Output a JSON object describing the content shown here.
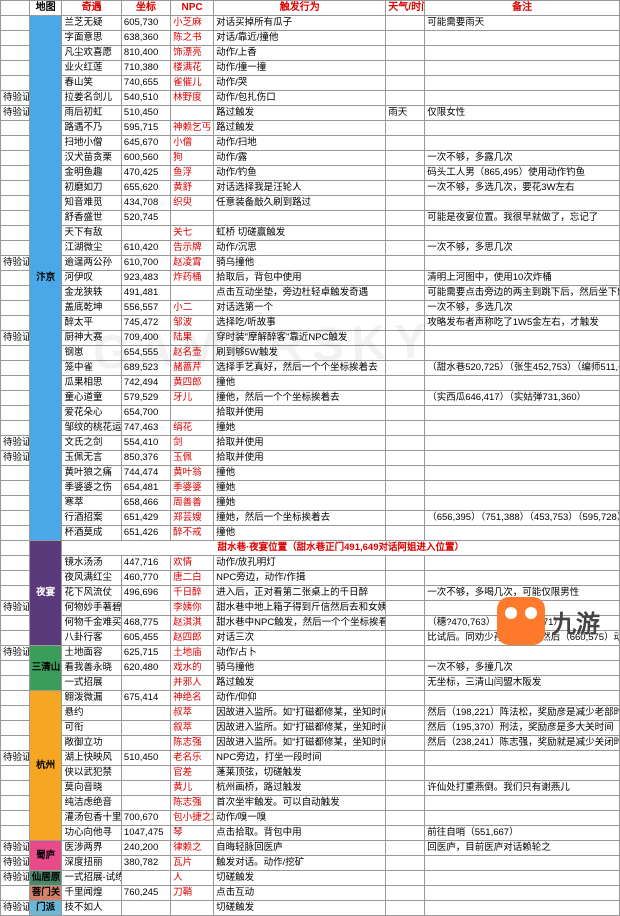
{
  "headers": {
    "map": "地图",
    "qiyu": "奇遇",
    "zuobiao": "坐标",
    "npc": "NPC",
    "chufa": "触发行为",
    "tianqi": "天气/时间",
    "beizhu": "备注"
  },
  "separator": "甜水巷·夜宴位置（甜水巷正门491,649对话阿姐进入位置）",
  "watermark": "GAMERSKY",
  "logo": "九游",
  "maps": [
    {
      "name": "汴京",
      "cls": "bg-bianjing",
      "rows": [
        {
          "yz": "",
          "qy": "兰芝无疑",
          "zb": "605,730",
          "npc": "小芝麻",
          "cf": "对话买掉所有瓜子",
          "tq": "",
          "bz": "可能需要雨天"
        },
        {
          "yz": "",
          "qy": "字面意思",
          "zb": "638,360",
          "npc": "陈之书",
          "cf": "对话/靠近/撞他",
          "tq": "",
          "bz": ""
        },
        {
          "yz": "",
          "qy": "凡尘欢喜愿",
          "zb": "810,400",
          "npc": "饰漂亮",
          "cf": "动作/上香",
          "tq": "",
          "bz": ""
        },
        {
          "yz": "",
          "qy": "业火红莲",
          "zb": "710,380",
          "npc": "楼满花",
          "cf": "动作/撞一撞",
          "tq": "",
          "bz": ""
        },
        {
          "yz": "",
          "qy": "春山笑",
          "zb": "740,655",
          "npc": "雀催儿",
          "cf": "动作/哭",
          "tq": "",
          "bz": ""
        },
        {
          "yz": "待验证",
          "qy": "拉姜名剑儿",
          "zb": "540,510",
          "npc": "林野度",
          "cf": "动作/包扎伤口",
          "tq": "",
          "bz": ""
        },
        {
          "yz": "待验证",
          "qy": "雨后初虹",
          "zb": "510,450",
          "npc": "",
          "cf": "路过触发",
          "tq": "雨天",
          "bz": "仅限女性"
        },
        {
          "yz": "",
          "qy": "路遇不乃",
          "zb": "595,715",
          "npc": "神赖乞丐",
          "cf": "路过触发",
          "tq": "",
          "bz": ""
        },
        {
          "yz": "",
          "qy": "扫地小僧",
          "zb": "645,670",
          "npc": "小僧",
          "cf": "动作/扫地",
          "tq": "",
          "bz": ""
        },
        {
          "yz": "",
          "qy": "汉犬苗贪栗",
          "zb": "600,560",
          "npc": "狗",
          "cf": "动作/露",
          "tq": "",
          "bz": "一次不够，多露几次"
        },
        {
          "yz": "",
          "qy": "金明鱼趣",
          "zb": "470,425",
          "npc": "鱼浮",
          "cf": "动作/钓鱼",
          "tq": "",
          "bz": "码头工人男（865,495）使用动作钓鱼"
        },
        {
          "yz": "",
          "qy": "初磨如刀",
          "zb": "655,620",
          "npc": "黄舒",
          "cf": "对话选择我是汪轮人",
          "tq": "",
          "bz": "一次不够，多选几次，要花3W左右"
        },
        {
          "yz": "",
          "qy": "知音难觅",
          "zb": "434,708",
          "npc": "织臾",
          "cf": "任意装备敲久刷到路过",
          "tq": "",
          "bz": ""
        },
        {
          "yz": "",
          "qy": "舒香盛世",
          "zb": "520,745",
          "npc": "",
          "cf": "",
          "tq": "",
          "bz": "可能是夜宴位置。我很早就做了，忘记了"
        },
        {
          "yz": "",
          "qy": "天下有敌",
          "zb": "",
          "npc": "关七",
          "cf": "虹桥 切磋赢触发",
          "tq": "",
          "bz": ""
        },
        {
          "yz": "",
          "qy": "江湖微尘",
          "zb": "610,420",
          "npc": "告示牌",
          "cf": "动作/沉思",
          "tq": "",
          "bz": "一次不够，多思几次"
        },
        {
          "yz": "待验证",
          "qy": "逾逞两公孙",
          "zb": "610,700",
          "npc": "赵凌霄",
          "cf": "骑乌撞他",
          "tq": "",
          "bz": ""
        },
        {
          "yz": "",
          "qy": "河伊叹",
          "zb": "923,483",
          "npc": "炸药桶",
          "cf": "拾取后，背包中使用",
          "tq": "",
          "bz": "清明上河图中，使用10次炸桶"
        },
        {
          "yz": "",
          "qy": "金龙狭轶",
          "zb": "491,481",
          "npc": "",
          "cf": "点击互动坐垫，旁边杜轻卓触发奇遇",
          "tq": "",
          "bz": "可能需要点击旁边的两主到跳下后，然后坐下触发"
        },
        {
          "yz": "",
          "qy": "盖底乾坤",
          "zb": "556,557",
          "npc": "小二",
          "cf": "对话选第一个",
          "tq": "",
          "bz": "一次不够，多选几次"
        },
        {
          "yz": "",
          "qy": "醉太平",
          "zb": "745,472",
          "npc": "邹波",
          "cf": "选择吃/听故事",
          "tq": "",
          "bz": "攻略发布者声称吃了1W5金左右，才触发"
        },
        {
          "yz": "待验证",
          "qy": "厨神大赛",
          "zb": "709,400",
          "npc": "陆果",
          "cf": "穿时装\"摩解醉客\"靠近NPC触发",
          "tq": "",
          "bz": ""
        },
        {
          "yz": "",
          "qy": "钢崽",
          "zb": "654,555",
          "npc": "赵名壶",
          "cf": "刷到够5W触发",
          "tq": "",
          "bz": ""
        },
        {
          "yz": "",
          "qy": "笼中雀",
          "zb": "689,523",
          "npc": "赭蔷芹",
          "cf": "选择手艺真好，然后一个个坐标挨着去",
          "tq": "",
          "bz": "（甜水巷520,725）（张生452,753）（编师511,693）（李府君客550,579）然后跟着着剧情走"
        },
        {
          "yz": "",
          "qy": "瓜果相思",
          "zb": "742,494",
          "npc": "黄四郎",
          "cf": "撞他",
          "tq": "",
          "bz": ""
        },
        {
          "yz": "",
          "qy": "童心道童",
          "zb": "579,529",
          "npc": "牙儿",
          "cf": "撞他，然后一个个坐标挨着去",
          "tq": "",
          "bz": "（实西瓜646,417）（实姑弹731,360）"
        },
        {
          "yz": "",
          "qy": "爱花朵心",
          "zb": "654,700",
          "npc": "",
          "cf": "拾取并使用",
          "tq": "",
          "bz": ""
        },
        {
          "yz": "",
          "qy": "邹纹的桃花运",
          "zb": "747,463",
          "npc": "绢花",
          "cf": "撞她",
          "tq": "",
          "bz": ""
        },
        {
          "yz": "待验证",
          "qy": "文氏之剑",
          "zb": "554,410",
          "npc": "剑",
          "cf": "拾取并使用",
          "tq": "",
          "bz": ""
        },
        {
          "yz": "待验证",
          "qy": "玉佩无言",
          "zb": "850,376",
          "npc": "玉佩",
          "cf": "拾取并使用",
          "tq": "",
          "bz": ""
        },
        {
          "yz": "",
          "qy": "黄叶狼之痛",
          "zb": "744,474",
          "npc": "黄叶翁",
          "cf": "撞他",
          "tq": "",
          "bz": ""
        },
        {
          "yz": "",
          "qy": "季婆婆之伤",
          "zb": "654,481",
          "npc": "季婆婆",
          "cf": "撞她",
          "tq": "",
          "bz": ""
        },
        {
          "yz": "",
          "qy": "寒萃",
          "zb": "658,466",
          "npc": "周善善",
          "cf": "撞她",
          "tq": "",
          "bz": ""
        },
        {
          "yz": "",
          "qy": "行酒招案",
          "zb": "651,429",
          "npc": "郑芸嫂",
          "cf": "撞她，然后一个坐标挨着去",
          "tq": "",
          "bz": "（656,395）（751,388）（453,753）（595,728）"
        },
        {
          "yz": "",
          "qy": "杯酒莫成",
          "zb": "651,426",
          "npc": "醉不戒",
          "cf": "撞他",
          "tq": "",
          "bz": ""
        }
      ]
    },
    {
      "name": "夜宴",
      "cls": "bg-yeyan",
      "sep": true,
      "rows": [
        {
          "yz": "",
          "qy": "镜水汤汤",
          "zb": "447,716",
          "npc": "欢情",
          "cf": "动作/放孔明灯",
          "tq": "",
          "bz": ""
        },
        {
          "yz": "",
          "qy": "夜风满红尘",
          "zb": "460,770",
          "npc": "唐二白",
          "cf": "NPC旁边，动作/作揖",
          "tq": "",
          "bz": ""
        },
        {
          "yz": "",
          "qy": "花下风流仗",
          "zb": "496,696",
          "npc": "千日醉",
          "cf": "进入后，正对看第二张桌上的千日醉",
          "tq": "",
          "bz": "一次不够，多喝几次，可能仅限男性"
        },
        {
          "yz": "待验证",
          "qy": "何物妙手著碧",
          "zb": "",
          "npc": "李姨你",
          "cf": "甜水巷中地上箱子得到斤信然后去和女姨拟对话",
          "tq": "",
          "bz": ""
        },
        {
          "yz": "",
          "qy": "何物千金难买",
          "zb": "468,775",
          "npc": "赵淇淇",
          "cf": "甜水巷中NPC触发，然后一个个坐标挨看去",
          "tq": "",
          "bz": "（穗?470,763）（穗?淇50,771）"
        },
        {
          "yz": "",
          "qy": "八卦行客",
          "zb": "605,455",
          "npc": "赵四郎",
          "cf": "对话三次",
          "tq": "",
          "bz": "比试后。同劝少孙张对话。然后（660,575）动作/促腿"
        }
      ]
    },
    {
      "name": "三清山",
      "cls": "bg-sanqing",
      "rows": [
        {
          "yz": "待验证",
          "qy": "土地面容",
          "zb": "625,715",
          "npc": "土地庙",
          "cf": "动作/占卜",
          "tq": "",
          "bz": ""
        },
        {
          "yz": "",
          "qy": "看我善永晓",
          "zb": "620,480",
          "npc": "戏水的",
          "cf": "骑乌撞他",
          "tq": "",
          "bz": "一次不够，多撞几次"
        },
        {
          "yz": "",
          "qy": "一式招展",
          "zb": "",
          "npc": "并邪人",
          "cf": "路过触发",
          "tq": "",
          "bz": "无坐标，三清山闫盟木阪发"
        }
      ]
    },
    {
      "name": "杭州",
      "cls": "bg-hangzhou",
      "rows": [
        {
          "yz": "",
          "qy": "翱泼微漏",
          "zb": "675,414",
          "npc": "神绝名",
          "cf": "动作/仰仰",
          "tq": "",
          "bz": ""
        },
        {
          "yz": "",
          "qy": "悬约",
          "zb": "",
          "npc": "叔萃",
          "cf": "因故进入监所。如\"打磁都修某，坐知时间如时间\"",
          "tq": "",
          "bz": "然后（198,221）阵法松，奖励彦是减少老部时间"
        },
        {
          "yz": "",
          "qy": "可衔",
          "zb": "",
          "npc": "叙萃",
          "cf": "因故进入监所。如\"打磁都修某，坐知时间如时间\"",
          "tq": "",
          "bz": "然后（195,370）刑法，奖励彦是多大关时间"
        },
        {
          "yz": "",
          "qy": "敞御立功",
          "zb": "",
          "npc": "陈志强",
          "cf": "因故进入监所。如\"打磁都修某，坐知时间如时间\"",
          "tq": "",
          "bz": "然后（238,241）陈志强，奖励就是减少关闭时间"
        },
        {
          "yz": "待验证",
          "qy": "湖上快映风",
          "zb": "510,450",
          "npc": "老名乐",
          "cf": "NPC旁边，打坐一段时间",
          "tq": "",
          "bz": ""
        },
        {
          "yz": "",
          "qy": "侠以武犯禁",
          "zb": "",
          "npc": "官差",
          "cf": "蓬莱顶弦，切磋触发",
          "tq": "",
          "bz": ""
        },
        {
          "yz": "",
          "qy": "莫向音晓",
          "zb": "",
          "npc": "黄儿",
          "cf": "杭州画桥，路过触发",
          "tq": "",
          "bz": "许仙处打重燕倒。我们只有谢燕儿"
        },
        {
          "yz": "",
          "qy": "纯洁虑绝音",
          "zb": "",
          "npc": "陈志强",
          "cf": "首次坐牢触发。可以自动触发",
          "tq": "",
          "bz": ""
        },
        {
          "yz": "",
          "qy": "灌汤包香十里",
          "zb": "700,670",
          "npc": "包小捷之发",
          "cf": "动作/嗅一嗅",
          "tq": "",
          "bz": ""
        },
        {
          "yz": "",
          "qy": "功心向他寻",
          "zb": "1047,475",
          "npc": "琴",
          "cf": "点击拾取。背包中用",
          "tq": "",
          "bz": "前往自哨（551,667）"
        }
      ]
    },
    {
      "name": "蜀庐",
      "cls": "bg-gulu",
      "rows": [
        {
          "yz": "待验证",
          "qy": "医涉两界",
          "zb": "240,200",
          "npc": "律赖之",
          "cf": "自晦轻脉回医庐",
          "tq": "",
          "bz": "回医庐，目前医庐对话赖轮之"
        },
        {
          "yz": "待验证",
          "qy": "深度扭丽",
          "zb": "380,782",
          "npc": "瓦片",
          "cf": "触发对话。动作/挖矿",
          "tq": "",
          "bz": ""
        }
      ]
    },
    {
      "name": "仙居原",
      "cls": "bg-xianju",
      "rows": [
        {
          "yz": "待验证",
          "qy": "一式招展-试练",
          "zb": "",
          "npc": "人",
          "cf": "切磋触发",
          "tq": "",
          "bz": ""
        }
      ]
    },
    {
      "name": "菩门关",
      "cls": "bg-shilian",
      "rows": [
        {
          "yz": "",
          "qy": "千里闻煌",
          "zb": "760,245",
          "npc": "刀鞘",
          "cf": "点击互动",
          "tq": "",
          "bz": ""
        }
      ]
    },
    {
      "name": "门派",
      "cls": "bg-menpai",
      "rows": [
        {
          "yz": "待验证",
          "qy": "技不如人",
          "zb": "",
          "npc": "",
          "cf": "切磋触发",
          "tq": "",
          "bz": ""
        }
      ]
    }
  ]
}
